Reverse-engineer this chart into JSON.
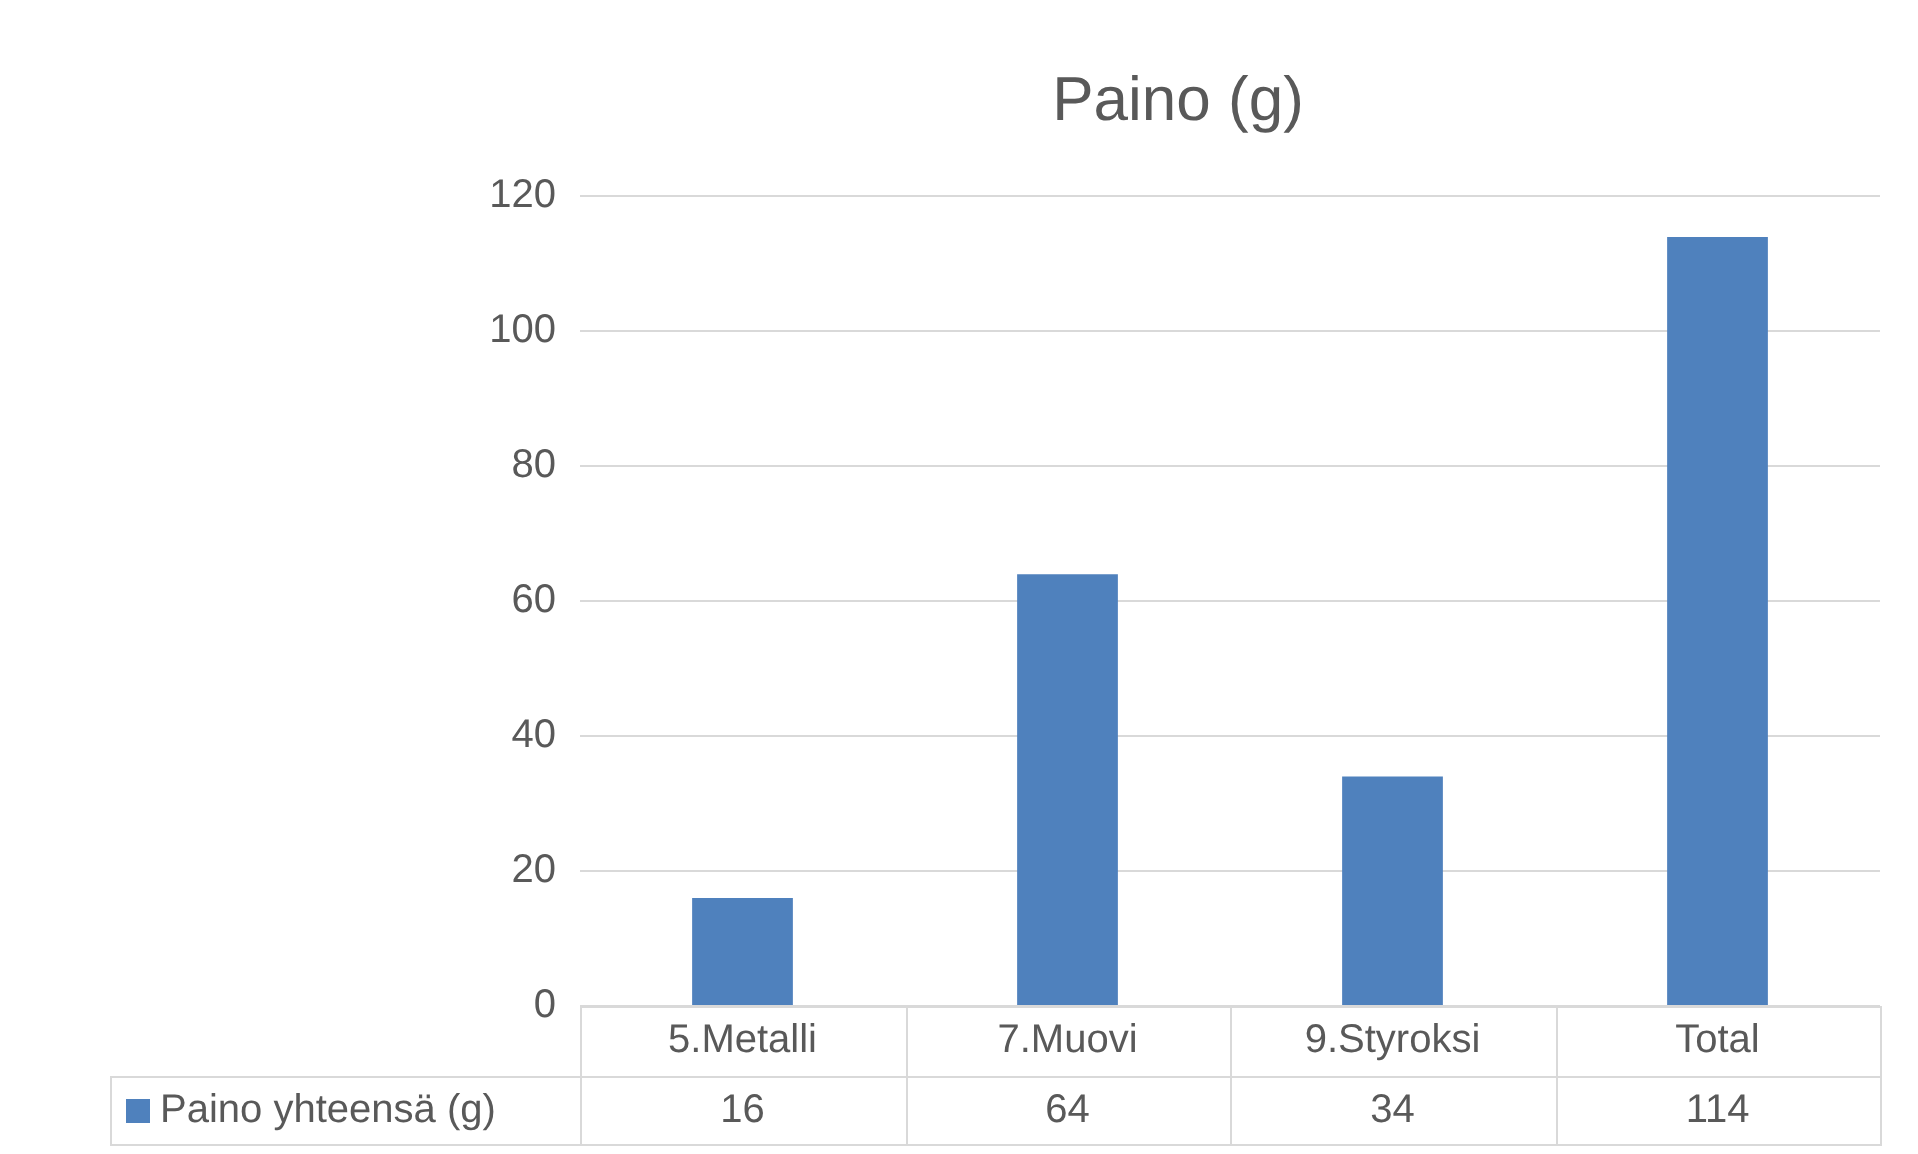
{
  "chart_data": {
    "type": "bar",
    "title": "Paino (g)",
    "categories": [
      "5.Metalli",
      "7.Muovi",
      "9.Styroksi",
      "Total"
    ],
    "series": [
      {
        "name": "Paino yhteensä (g)",
        "color": "#4f81bd",
        "values": [
          16,
          64,
          34,
          114
        ]
      }
    ],
    "ylim": [
      0,
      120
    ],
    "yticks": [
      0,
      20,
      40,
      60,
      80,
      100,
      120
    ],
    "grid": "y",
    "legend": "bottom",
    "data_labels": true
  }
}
